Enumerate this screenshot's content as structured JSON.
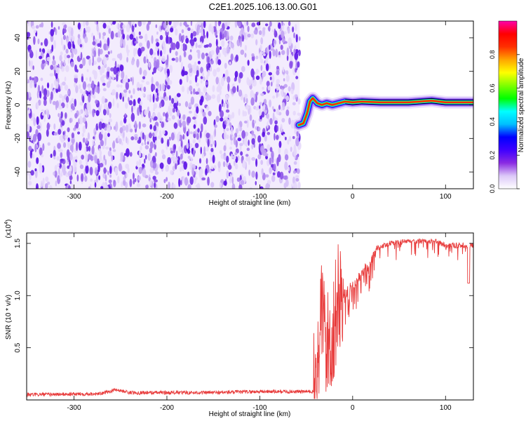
{
  "figure": {
    "title": "C2E1.2025.106.13.00.G01"
  },
  "chart_data": [
    {
      "type": "heatmap",
      "xlabel": "Height of straight line (km)",
      "ylabel": "Frequency (Hz)",
      "xlim": [
        -351,
        130
      ],
      "ylim": [
        -50,
        50
      ],
      "x_ticks": [
        -300,
        -200,
        -100,
        0,
        100
      ],
      "y_ticks": [
        -40,
        -20,
        0,
        20,
        40
      ],
      "noise_region": {
        "x": [
          -351,
          -57
        ],
        "y": [
          -50,
          50
        ]
      },
      "signal_track": [
        {
          "x": -58,
          "y": -12
        },
        {
          "x": -53,
          "y": -11
        },
        {
          "x": -49,
          "y": -5
        },
        {
          "x": -46,
          "y": 2
        },
        {
          "x": -43,
          "y": 4
        },
        {
          "x": -38,
          "y": 1
        },
        {
          "x": -33,
          "y": 0
        },
        {
          "x": -28,
          "y": 1
        },
        {
          "x": -22,
          "y": 0
        },
        {
          "x": -15,
          "y": 1
        },
        {
          "x": -8,
          "y": 2
        },
        {
          "x": 0,
          "y": 1.5
        },
        {
          "x": 10,
          "y": 2
        },
        {
          "x": 30,
          "y": 1.5
        },
        {
          "x": 60,
          "y": 1.5
        },
        {
          "x": 85,
          "y": 2.5
        },
        {
          "x": 100,
          "y": 1.5
        },
        {
          "x": 130,
          "y": 1.5
        }
      ],
      "colorbar": {
        "label": "Normalized spectral amplitude",
        "range": [
          0,
          1
        ],
        "ticks": [
          "0.0",
          "0.2",
          "0.4",
          "0.6",
          "0.8"
        ],
        "colors": [
          "#ffffff",
          "#dcc8f8",
          "#8a2be2",
          "#3f00ff",
          "#0000ff",
          "#00bfff",
          "#00ffff",
          "#00ff00",
          "#7fff00",
          "#ffff00",
          "#ffa500",
          "#ff3000",
          "#ff0000",
          "#ff00aa"
        ]
      }
    },
    {
      "type": "line",
      "xlabel": "Height of straight line (km)",
      "ylabel": "SNR (10 * v/v)",
      "y_multiplier_label": "(x10",
      "y_multiplier_exponent": "4",
      "xlim": [
        -351,
        130
      ],
      "ylim": [
        0,
        1.6
      ],
      "x_ticks": [
        -300,
        -200,
        -100,
        0,
        100
      ],
      "y_ticks": [
        "0.5",
        "1.0",
        "1.5"
      ],
      "line_color": "#e83c3c",
      "profile": [
        {
          "x": -351,
          "y": 0.05
        },
        {
          "x": -270,
          "y": 0.06
        },
        {
          "x": -255,
          "y": 0.1
        },
        {
          "x": -240,
          "y": 0.07
        },
        {
          "x": -150,
          "y": 0.07
        },
        {
          "x": -100,
          "y": 0.08
        },
        {
          "x": -60,
          "y": 0.08
        },
        {
          "x": -42,
          "y": 0.08
        },
        {
          "x": -38,
          "y": 0.3
        },
        {
          "x": -33,
          "y": 0.9
        },
        {
          "x": -28,
          "y": 0.5
        },
        {
          "x": -22,
          "y": 0.6
        },
        {
          "x": -15,
          "y": 1.0
        },
        {
          "x": -5,
          "y": 1.1
        },
        {
          "x": 5,
          "y": 1.2
        },
        {
          "x": 15,
          "y": 1.35
        },
        {
          "x": 25,
          "y": 1.45
        },
        {
          "x": 40,
          "y": 1.5
        },
        {
          "x": 60,
          "y": 1.52
        },
        {
          "x": 90,
          "y": 1.52
        },
        {
          "x": 100,
          "y": 1.48
        },
        {
          "x": 130,
          "y": 1.48
        }
      ]
    }
  ]
}
